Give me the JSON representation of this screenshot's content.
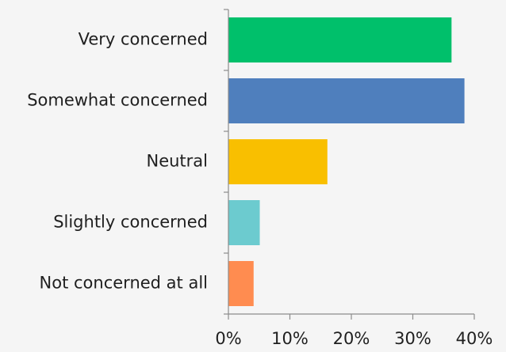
{
  "chart_data": {
    "type": "bar",
    "orientation": "horizontal",
    "categories": [
      "Very concerned",
      "Somewhat concerned",
      "Neutral",
      "Slightly concerned",
      "Not concerned at all"
    ],
    "values": [
      36.3,
      38.4,
      16.1,
      5.1,
      4.1
    ],
    "colors": [
      "#00c06b",
      "#4f7fbd",
      "#f9bf00",
      "#6ccbcf",
      "#ff8c50"
    ],
    "xlim": [
      0,
      40
    ],
    "xticks": [
      0,
      10,
      20,
      30,
      40
    ],
    "xtick_labels": [
      "0%",
      "10%",
      "20%",
      "30%",
      "40%"
    ],
    "grid": false,
    "title": "",
    "xlabel": "",
    "ylabel": ""
  }
}
